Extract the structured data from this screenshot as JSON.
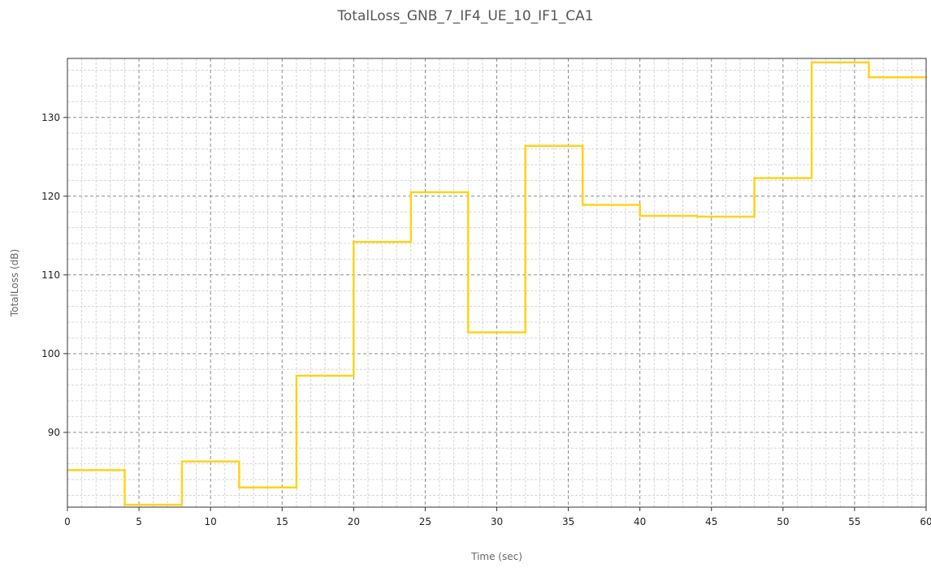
{
  "chart_data": {
    "type": "line",
    "step": true,
    "title": "TotalLoss_GNB_7_IF4_UE_10_IF1_CA1",
    "xlabel": "Time (sec)",
    "ylabel": "TotalLoss (dB)",
    "xlim": [
      0,
      60
    ],
    "ylim": [
      80.5,
      137.5
    ],
    "xticks": [
      0,
      5,
      10,
      15,
      20,
      25,
      30,
      35,
      40,
      45,
      50,
      55,
      60
    ],
    "yticks": [
      90,
      100,
      110,
      120,
      130
    ],
    "grid": true,
    "series": [
      {
        "color": "#FFD21A",
        "x": [
          0,
          4,
          4,
          8,
          8,
          12,
          12,
          16,
          16,
          20,
          20,
          24,
          24,
          28,
          28,
          32,
          32,
          36,
          36,
          40,
          40,
          44,
          44,
          48,
          48,
          52,
          52,
          56,
          56,
          60
        ],
        "values": [
          85.2,
          85.2,
          80.8,
          80.8,
          86.3,
          86.3,
          83.0,
          83.0,
          97.2,
          97.2,
          114.2,
          114.2,
          120.5,
          120.5,
          102.7,
          102.7,
          126.4,
          126.4,
          118.9,
          118.9,
          117.5,
          117.5,
          117.4,
          117.4,
          122.3,
          122.3,
          137.0,
          137.0,
          135.1,
          135.1
        ]
      }
    ]
  }
}
